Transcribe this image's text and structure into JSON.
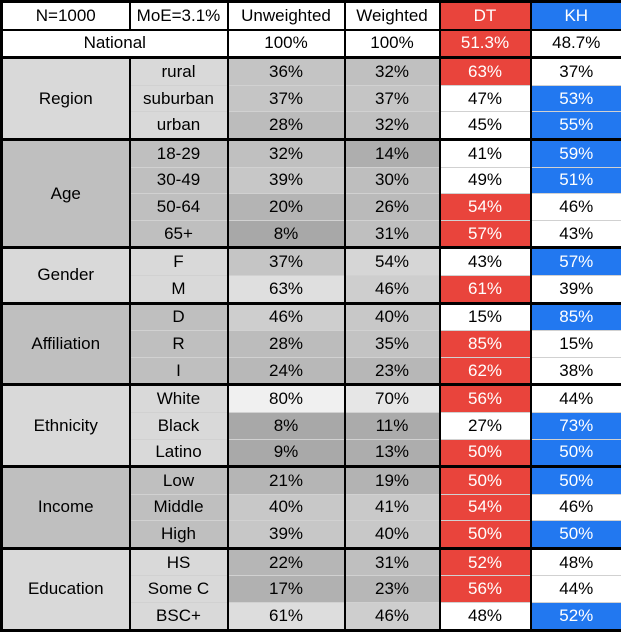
{
  "colors": {
    "dt_fill": "#e9443c",
    "kh_fill": "#2278f0",
    "group_light": "#d9d9d9",
    "group_dark": "#bfbfbf",
    "border": "#000000",
    "filled_text": "#ffffff"
  },
  "formatting": {
    "fill_threshold_percent": 50,
    "heatmap_base_gray": 160,
    "heatmap_note": "unweighted/weighted cells shade from dark gray (low %) to near white (high %)"
  },
  "chart_data": {
    "type": "table",
    "columns": [
      "N=1000",
      "MoE=3.1%",
      "Unweighted",
      "Weighted",
      "DT",
      "KH"
    ],
    "national": {
      "label": "National",
      "unweighted": "100%",
      "weighted": "100%",
      "dt": "51.3%",
      "kh": "48.7%"
    },
    "groups": [
      {
        "label": "Region",
        "rows": [
          {
            "category": "rural",
            "unweighted": "36%",
            "weighted": "32%",
            "dt": "63%",
            "kh": "37%"
          },
          {
            "category": "suburban",
            "unweighted": "37%",
            "weighted": "37%",
            "dt": "47%",
            "kh": "53%"
          },
          {
            "category": "urban",
            "unweighted": "28%",
            "weighted": "32%",
            "dt": "45%",
            "kh": "55%"
          }
        ]
      },
      {
        "label": "Age",
        "rows": [
          {
            "category": "18-29",
            "unweighted": "32%",
            "weighted": "14%",
            "dt": "41%",
            "kh": "59%"
          },
          {
            "category": "30-49",
            "unweighted": "39%",
            "weighted": "30%",
            "dt": "49%",
            "kh": "51%"
          },
          {
            "category": "50-64",
            "unweighted": "20%",
            "weighted": "26%",
            "dt": "54%",
            "kh": "46%"
          },
          {
            "category": "65+",
            "unweighted": "8%",
            "weighted": "31%",
            "dt": "57%",
            "kh": "43%"
          }
        ]
      },
      {
        "label": "Gender",
        "rows": [
          {
            "category": "F",
            "unweighted": "37%",
            "weighted": "54%",
            "dt": "43%",
            "kh": "57%"
          },
          {
            "category": "M",
            "unweighted": "63%",
            "weighted": "46%",
            "dt": "61%",
            "kh": "39%"
          }
        ]
      },
      {
        "label": "Affiliation",
        "rows": [
          {
            "category": "D",
            "unweighted": "46%",
            "weighted": "40%",
            "dt": "15%",
            "kh": "85%"
          },
          {
            "category": "R",
            "unweighted": "28%",
            "weighted": "35%",
            "dt": "85%",
            "kh": "15%"
          },
          {
            "category": "I",
            "unweighted": "24%",
            "weighted": "23%",
            "dt": "62%",
            "kh": "38%"
          }
        ]
      },
      {
        "label": "Ethnicity",
        "rows": [
          {
            "category": "White",
            "unweighted": "80%",
            "weighted": "70%",
            "dt": "56%",
            "kh": "44%"
          },
          {
            "category": "Black",
            "unweighted": "8%",
            "weighted": "11%",
            "dt": "27%",
            "kh": "73%"
          },
          {
            "category": "Latino",
            "unweighted": "9%",
            "weighted": "13%",
            "dt": "50%",
            "kh": "50%"
          }
        ]
      },
      {
        "label": "Income",
        "rows": [
          {
            "category": "Low",
            "unweighted": "21%",
            "weighted": "19%",
            "dt": "50%",
            "kh": "50%"
          },
          {
            "category": "Middle",
            "unweighted": "40%",
            "weighted": "41%",
            "dt": "54%",
            "kh": "46%"
          },
          {
            "category": "High",
            "unweighted": "39%",
            "weighted": "40%",
            "dt": "50%",
            "kh": "50%"
          }
        ]
      },
      {
        "label": "Education",
        "rows": [
          {
            "category": "HS",
            "unweighted": "22%",
            "weighted": "31%",
            "dt": "52%",
            "kh": "48%"
          },
          {
            "category": "Some C",
            "unweighted": "17%",
            "weighted": "23%",
            "dt": "56%",
            "kh": "44%"
          },
          {
            "category": "BSC+",
            "unweighted": "61%",
            "weighted": "46%",
            "dt": "48%",
            "kh": "52%"
          }
        ]
      }
    ]
  }
}
